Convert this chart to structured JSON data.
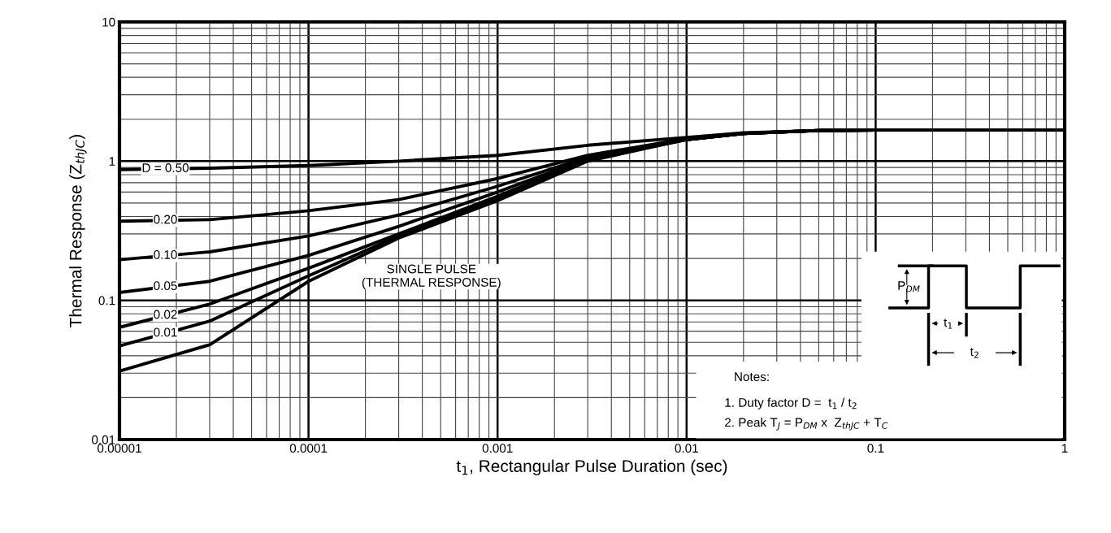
{
  "chart_data": {
    "type": "line",
    "xlabel": "t$_{1}$, Rectangular Pulse Duration (sec)",
    "ylabel": "Thermal Response (Z$_{thJC}$)",
    "log": "xy",
    "grid": true,
    "marker": "none",
    "line_style": "solid",
    "xlim": [
      1e-05,
      1
    ],
    "ylim": [
      0.01,
      10
    ],
    "xticks": [
      {
        "value": 1e-05,
        "label": "0.00001"
      },
      {
        "value": 0.0001,
        "label": "0.0001"
      },
      {
        "value": 0.001,
        "label": "0.001"
      },
      {
        "value": 0.01,
        "label": "0.01"
      },
      {
        "value": 0.1,
        "label": "0.1"
      },
      {
        "value": 1,
        "label": "1"
      }
    ],
    "yticks": [
      {
        "value": 0.01,
        "label": "0.01"
      },
      {
        "value": 0.1,
        "label": "0.1"
      },
      {
        "value": 1,
        "label": "1"
      },
      {
        "value": 10,
        "label": "10"
      }
    ],
    "x": [
      1e-05,
      3e-05,
      0.0001,
      0.0003,
      0.001,
      0.003,
      0.01,
      0.02,
      0.05,
      0.1,
      1
    ],
    "series": [
      {
        "name": "D = 0.50",
        "color": "#000000",
        "values": [
          0.87,
          0.89,
          0.93,
          1.0,
          1.1,
          1.3,
          1.48,
          1.6,
          1.66,
          1.67,
          1.67
        ]
      },
      {
        "name": "0.20",
        "color": "#000000",
        "values": [
          0.37,
          0.38,
          0.44,
          0.53,
          0.75,
          1.1,
          1.45,
          1.58,
          1.66,
          1.67,
          1.67
        ]
      },
      {
        "name": "0.10",
        "color": "#000000",
        "values": [
          0.196,
          0.223,
          0.29,
          0.41,
          0.66,
          1.07,
          1.43,
          1.58,
          1.66,
          1.67,
          1.67
        ]
      },
      {
        "name": "0.05",
        "color": "#000000",
        "values": [
          0.114,
          0.137,
          0.21,
          0.34,
          0.6,
          1.05,
          1.43,
          1.58,
          1.66,
          1.67,
          1.67
        ]
      },
      {
        "name": "0.02",
        "color": "#000000",
        "values": [
          0.064,
          0.094,
          0.17,
          0.3,
          0.56,
          1.03,
          1.43,
          1.58,
          1.66,
          1.67,
          1.67
        ]
      },
      {
        "name": "0.01",
        "color": "#000000",
        "values": [
          0.047,
          0.071,
          0.15,
          0.29,
          0.54,
          1.02,
          1.43,
          1.58,
          1.66,
          1.67,
          1.67
        ]
      },
      {
        "color": "#000000",
        "values": [
          0.031,
          0.048,
          0.137,
          0.28,
          0.52,
          1.0,
          1.43,
          1.58,
          1.66,
          1.67,
          1.67
        ]
      }
    ],
    "annotations": [
      "SINGLE PULSE\n(THERMAL RESPONSE)",
      "P$_{DM}$",
      "t$_{1}$",
      "t$_{2}$",
      "Notes:",
      "1. Duty factor D =  t$_{1}$ / t$_{2}$",
      "2. Peak T$_{J}$ = P$_{DM}$ x  Z$_{thJC}$ + T$_{C}$"
    ]
  }
}
